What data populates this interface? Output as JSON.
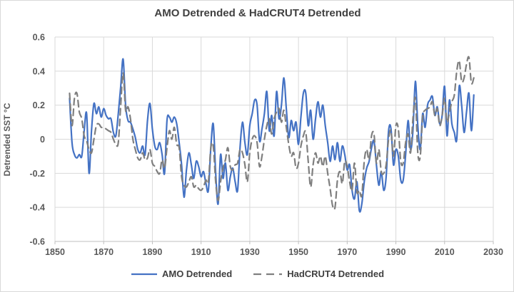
{
  "title": "AMO Detrended & HadCRUT4 Detrended",
  "y_axis": {
    "title": "Detrended SST °C",
    "ticks": [
      "0.6",
      "0.4",
      "0.2",
      "0",
      "-0.2",
      "-0.4",
      "-0.6"
    ],
    "tick_values": [
      0.6,
      0.4,
      0.2,
      0,
      -0.2,
      -0.4,
      -0.6
    ]
  },
  "x_axis": {
    "ticks": [
      "1850",
      "1870",
      "1890",
      "1910",
      "1930",
      "1950",
      "1970",
      "1990",
      "2010",
      "2030"
    ],
    "tick_values": [
      1850,
      1870,
      1890,
      1910,
      1930,
      1950,
      1970,
      1990,
      2010,
      2030
    ]
  },
  "legend": {
    "amo_label": "AMO Detrended",
    "hadcrut_label": "HadCRUT4 Detrended"
  },
  "colors": {
    "amo": "#4472C4",
    "hadcrut": "#7F7F7F",
    "grid": "#D9D9D9",
    "axis_line": "#BFBFBF",
    "tick_text": "#595959",
    "title_text": "#404040"
  },
  "chart_data": {
    "type": "line",
    "title": "AMO Detrended & HadCRUT4 Detrended",
    "xlabel": "",
    "ylabel": "Detrended SST °C",
    "xlim": [
      1850,
      2030
    ],
    "ylim": [
      -0.6,
      0.6
    ],
    "grid": true,
    "legend_position": "bottom",
    "start_year": 1856,
    "series": [
      {
        "name": "AMO Detrended",
        "color": "#4472C4",
        "style": "solid",
        "values": [
          0.24,
          -0.02,
          -0.09,
          -0.11,
          -0.09,
          -0.1,
          0.05,
          0.15,
          -0.2,
          0.05,
          0.21,
          0.15,
          0.19,
          0.13,
          0.18,
          0.14,
          0.12,
          0.12,
          0.04,
          0.02,
          0.15,
          0.31,
          0.47,
          0.2,
          0.11,
          0.1,
          0.06,
          0.01,
          -0.06,
          -0.08,
          -0.04,
          -0.09,
          0.11,
          0.21,
          0.06,
          -0.04,
          -0.06,
          -0.02,
          -0.09,
          -0.2,
          0.11,
          0.13,
          0.1,
          0.13,
          0.09,
          -0.02,
          -0.15,
          -0.34,
          -0.18,
          -0.08,
          -0.15,
          -0.23,
          -0.13,
          -0.16,
          -0.22,
          -0.19,
          -0.26,
          -0.3,
          -0.05,
          0.09,
          -0.2,
          -0.38,
          -0.09,
          -0.23,
          -0.14,
          -0.3,
          -0.22,
          -0.17,
          -0.25,
          -0.3,
          -0.05,
          0.1,
          -0.02,
          -0.09,
          0.08,
          0.15,
          0.23,
          0.2,
          -0.01,
          0.06,
          0.15,
          0.28,
          0.05,
          0.14,
          0.02,
          0.28,
          0.12,
          0.2,
          0.36,
          0.18,
          0.01,
          0.11,
          0.05,
          0.1,
          -0.03,
          0.13,
          0.27,
          0.27,
          0.08,
          0.17,
          0.0,
          0.12,
          0.22,
          0.13,
          0.2,
          0.08,
          -0.02,
          -0.13,
          -0.04,
          -0.12,
          -0.02,
          -0.13,
          -0.04,
          -0.09,
          -0.18,
          -0.15,
          -0.3,
          -0.35,
          -0.25,
          -0.42,
          -0.38,
          -0.25,
          -0.17,
          -0.13,
          -0.05,
          -0.01,
          -0.15,
          -0.27,
          -0.19,
          -0.3,
          -0.22,
          0.05,
          0.06,
          -0.15,
          -0.06,
          -0.1,
          -0.24,
          -0.24,
          -0.09,
          0.11,
          -0.06,
          0.05,
          0.34,
          0.08,
          -0.06,
          0.15,
          0.07,
          0.2,
          0.23,
          0.25,
          0.14,
          0.19,
          0.09,
          0.14,
          0.31,
          0.02,
          0.23,
          0.09,
          0.04,
          0.0,
          0.31,
          0.2,
          0.04,
          0.16,
          0.27,
          0.05,
          0.26
        ]
      },
      {
        "name": "HadCRUT4 Detrended",
        "color": "#7F7F7F",
        "style": "dashed",
        "values": [
          0.27,
          0.08,
          0.24,
          0.27,
          0.16,
          0.12,
          0.02,
          -0.01,
          -0.06,
          -0.08,
          0.0,
          0.08,
          0.09,
          0.07,
          0.07,
          0.06,
          0.05,
          0.04,
          0.0,
          -0.03,
          -0.02,
          0.2,
          0.39,
          0.17,
          0.19,
          0.12,
          0.0,
          -0.06,
          -0.11,
          -0.12,
          -0.08,
          -0.12,
          -0.11,
          -0.06,
          -0.14,
          -0.16,
          -0.19,
          -0.2,
          -0.12,
          -0.17,
          -0.05,
          0.05,
          0.0,
          0.07,
          -0.03,
          -0.05,
          -0.22,
          -0.27,
          -0.28,
          -0.25,
          -0.22,
          -0.28,
          -0.27,
          -0.29,
          -0.3,
          -0.28,
          -0.24,
          -0.25,
          -0.05,
          -0.04,
          -0.25,
          -0.36,
          -0.25,
          -0.17,
          -0.12,
          -0.05,
          -0.16,
          -0.18,
          -0.15,
          -0.14,
          -0.06,
          -0.08,
          -0.15,
          -0.25,
          -0.08,
          0.0,
          0.02,
          -0.02,
          -0.16,
          -0.1,
          0.0,
          0.08,
          0.12,
          0.03,
          0.12,
          0.16,
          0.18,
          0.1,
          0.17,
          0.07,
          -0.03,
          -0.1,
          -0.08,
          -0.17,
          -0.14,
          -0.04,
          0.02,
          0.04,
          -0.13,
          -0.28,
          -0.15,
          -0.08,
          -0.14,
          -0.1,
          -0.16,
          -0.1,
          -0.2,
          -0.29,
          -0.39,
          -0.4,
          -0.24,
          -0.19,
          -0.26,
          -0.13,
          -0.16,
          -0.25,
          -0.3,
          -0.14,
          -0.31,
          -0.3,
          -0.33,
          -0.13,
          -0.06,
          -0.12,
          0.02,
          0.03,
          -0.14,
          -0.06,
          -0.19,
          -0.2,
          -0.15,
          0.0,
          0.05,
          -0.1,
          0.08,
          0.06,
          -0.13,
          -0.14,
          -0.02,
          0.03,
          -0.08,
          0.12,
          0.24,
          -0.08,
          -0.1,
          0.13,
          0.17,
          0.18,
          0.19,
          0.22,
          0.14,
          0.18,
          0.08,
          0.14,
          0.24,
          0.1,
          0.16,
          0.22,
          0.26,
          0.4,
          0.46,
          0.34,
          0.36,
          0.44,
          0.48,
          0.33,
          0.36
        ]
      }
    ]
  }
}
